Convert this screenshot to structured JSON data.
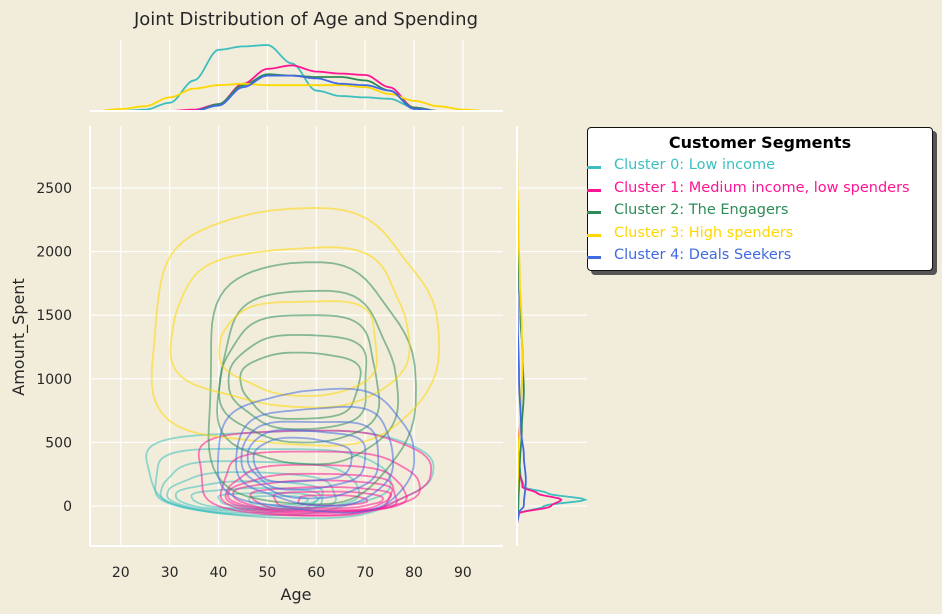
{
  "chart_data": {
    "type": "joint-kde",
    "title": "Joint Distribution of Age and Spending",
    "xlabel": "Age",
    "ylabel": "Amount_Spent",
    "xlim": [
      13.7,
      98.2
    ],
    "ylim": [
      -314,
      2987
    ],
    "xticks": [
      20,
      30,
      40,
      50,
      60,
      70,
      80,
      90
    ],
    "yticks": [
      0,
      500,
      1000,
      1500,
      2000,
      2500
    ],
    "grid": true,
    "legend": {
      "title": "Customer Segments",
      "placement": "right"
    },
    "series": [
      {
        "name": "Cluster 0: Low income",
        "color": "#3DBFBF",
        "contours": [
          [
            54,
            260,
            29,
            340
          ],
          [
            50,
            200,
            24,
            260
          ],
          [
            48,
            150,
            20,
            200
          ],
          [
            47,
            110,
            17,
            150
          ],
          [
            47,
            80,
            15,
            110
          ],
          [
            48,
            60,
            13,
            80
          ],
          [
            50,
            50,
            10,
            55
          ],
          [
            52,
            45,
            6,
            35
          ]
        ],
        "age_density": [
          [
            20,
            0
          ],
          [
            25,
            0.02
          ],
          [
            30,
            0.12
          ],
          [
            35,
            0.45
          ],
          [
            40,
            0.9
          ],
          [
            45,
            0.95
          ],
          [
            50,
            0.97
          ],
          [
            55,
            0.7
          ],
          [
            60,
            0.3
          ],
          [
            65,
            0.22
          ],
          [
            70,
            0.2
          ],
          [
            75,
            0.18
          ],
          [
            80,
            0.05
          ],
          [
            85,
            0
          ],
          [
            90,
            0
          ]
        ],
        "amount_density": [
          [
            -150,
            0
          ],
          [
            -60,
            0.02
          ],
          [
            0,
            0.4
          ],
          [
            50,
            1.0
          ],
          [
            100,
            0.45
          ],
          [
            150,
            0.1
          ],
          [
            250,
            0.05
          ],
          [
            400,
            0.02
          ],
          [
            600,
            0
          ]
        ]
      },
      {
        "name": "Cluster 1: Medium income, low spenders",
        "color": "#FF1493",
        "contours": [
          [
            58.5,
            265,
            23.5,
            335
          ],
          [
            60,
            180,
            20,
            250
          ],
          [
            60,
            130,
            18,
            190
          ],
          [
            60,
            100,
            17,
            150
          ],
          [
            60,
            80,
            16,
            120
          ],
          [
            61,
            60,
            14,
            90
          ],
          [
            62,
            50,
            11,
            65
          ],
          [
            63,
            45,
            7,
            40
          ]
        ],
        "age_density": [
          [
            30,
            0
          ],
          [
            35,
            0.02
          ],
          [
            40,
            0.1
          ],
          [
            45,
            0.4
          ],
          [
            50,
            0.62
          ],
          [
            55,
            0.67
          ],
          [
            60,
            0.58
          ],
          [
            65,
            0.55
          ],
          [
            70,
            0.53
          ],
          [
            75,
            0.35
          ],
          [
            80,
            0.05
          ],
          [
            85,
            0
          ]
        ],
        "amount_density": [
          [
            -150,
            0
          ],
          [
            -60,
            0.02
          ],
          [
            0,
            0.5
          ],
          [
            50,
            0.65
          ],
          [
            100,
            0.3
          ],
          [
            150,
            0.08
          ],
          [
            300,
            0.03
          ],
          [
            500,
            0.01
          ],
          [
            700,
            0
          ]
        ]
      },
      {
        "name": "Cluster 2: The Engagers",
        "color": "#2E8B57",
        "contours": [
          [
            58,
            950,
            21,
            950
          ],
          [
            58,
            1000,
            18,
            680
          ],
          [
            57,
            1000,
            16,
            500
          ],
          [
            57,
            980,
            14,
            370
          ],
          [
            57,
            950,
            12,
            260
          ]
        ],
        "age_density": [
          [
            35,
            0
          ],
          [
            40,
            0.1
          ],
          [
            45,
            0.38
          ],
          [
            50,
            0.54
          ],
          [
            55,
            0.52
          ],
          [
            60,
            0.5
          ],
          [
            65,
            0.5
          ],
          [
            70,
            0.45
          ],
          [
            75,
            0.3
          ],
          [
            80,
            0.05
          ],
          [
            85,
            0
          ]
        ],
        "amount_density": [
          [
            -100,
            0
          ],
          [
            0,
            0.02
          ],
          [
            300,
            0.04
          ],
          [
            600,
            0.07
          ],
          [
            900,
            0.1
          ],
          [
            1200,
            0.08
          ],
          [
            1500,
            0.05
          ],
          [
            1900,
            0.02
          ],
          [
            2300,
            0
          ]
        ]
      },
      {
        "name": "Cluster 3: High spenders",
        "color": "#FFD700",
        "contours": [
          [
            55,
            1375,
            29,
            925
          ],
          [
            55,
            1400,
            24,
            620
          ],
          [
            57,
            1250,
            16,
            370
          ]
        ],
        "age_density": [
          [
            15,
            0
          ],
          [
            20,
            0.03
          ],
          [
            25,
            0.07
          ],
          [
            30,
            0.2
          ],
          [
            35,
            0.33
          ],
          [
            40,
            0.38
          ],
          [
            45,
            0.4
          ],
          [
            50,
            0.38
          ],
          [
            55,
            0.38
          ],
          [
            60,
            0.38
          ],
          [
            65,
            0.38
          ],
          [
            70,
            0.35
          ],
          [
            75,
            0.25
          ],
          [
            80,
            0.15
          ],
          [
            85,
            0.07
          ],
          [
            90,
            0.02
          ],
          [
            95,
            0
          ]
        ],
        "amount_density": [
          [
            0,
            0
          ],
          [
            400,
            0.02
          ],
          [
            800,
            0.06
          ],
          [
            1100,
            0.08
          ],
          [
            1400,
            0.07
          ],
          [
            1800,
            0.04
          ],
          [
            2200,
            0.02
          ],
          [
            2600,
            0.005
          ],
          [
            2900,
            0
          ]
        ]
      },
      {
        "name": "Cluster 4: Deals Seekers",
        "color": "#4169E1",
        "contours": [
          [
            60,
            425,
            20,
            475
          ],
          [
            60,
            400,
            16,
            380
          ],
          [
            59,
            380,
            14,
            300
          ],
          [
            58,
            370,
            12,
            230
          ],
          [
            57,
            360,
            10,
            170
          ]
        ],
        "age_density": [
          [
            35,
            0
          ],
          [
            40,
            0.08
          ],
          [
            45,
            0.35
          ],
          [
            50,
            0.52
          ],
          [
            55,
            0.52
          ],
          [
            60,
            0.48
          ],
          [
            65,
            0.4
          ],
          [
            70,
            0.38
          ],
          [
            75,
            0.3
          ],
          [
            80,
            0.03
          ],
          [
            85,
            0
          ]
        ],
        "amount_density": [
          [
            -150,
            0
          ],
          [
            -50,
            0.03
          ],
          [
            0,
            0.1
          ],
          [
            200,
            0.13
          ],
          [
            400,
            0.1
          ],
          [
            600,
            0.06
          ],
          [
            1000,
            0.03
          ],
          [
            1500,
            0.01
          ],
          [
            2000,
            0
          ]
        ]
      }
    ]
  }
}
